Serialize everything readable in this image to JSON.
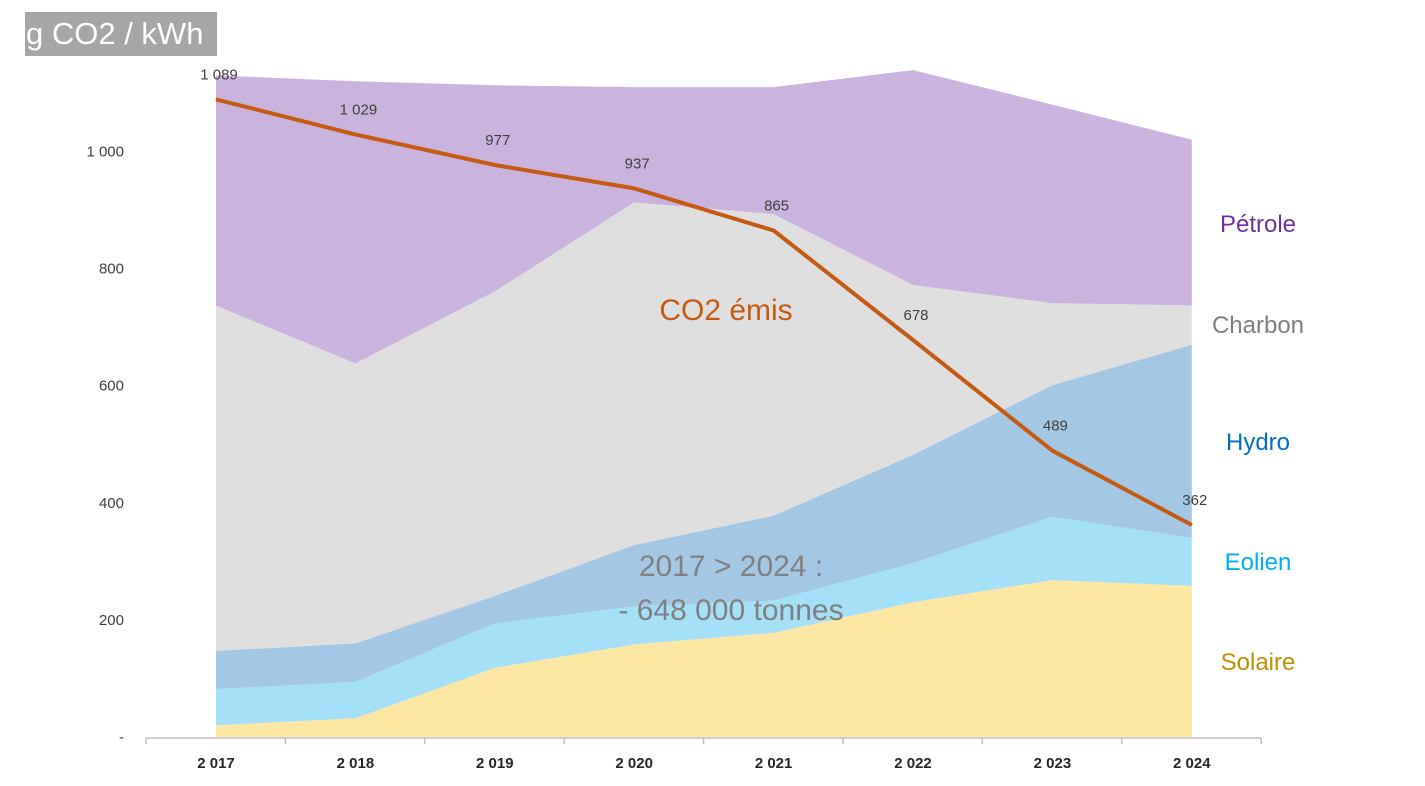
{
  "chart_data": {
    "type": "area",
    "ylabel": "g CO2 / kWh",
    "x": [
      "2 017",
      "2 018",
      "2 019",
      "2 020",
      "2 021",
      "2 022",
      "2 023",
      "2 024"
    ],
    "ylim": [
      0,
      1100
    ],
    "y_ticks": [
      {
        "value": 0,
        "label": "-"
      },
      {
        "value": 200,
        "label": "200"
      },
      {
        "value": 400,
        "label": "400"
      },
      {
        "value": 600,
        "label": "600"
      },
      {
        "value": 800,
        "label": "800"
      },
      {
        "value": 1000,
        "label": "1 000"
      }
    ],
    "stacked_series": [
      {
        "name": "Solaire",
        "color": "#fee7a2",
        "label_color": "#bf9000",
        "values": [
          20,
          32,
          118,
          158,
          178,
          230,
          268,
          258
        ]
      },
      {
        "name": "Eolien",
        "color": "#a4e0f8",
        "label_color": "#00b0f0",
        "values": [
          62,
          62,
          76,
          65,
          55,
          67,
          108,
          82
        ]
      },
      {
        "name": "Hydro",
        "color": "#a3c8e6",
        "label_color": "#0070c0",
        "values": [
          65,
          66,
          47,
          105,
          145,
          185,
          225,
          330
        ]
      },
      {
        "name": "Charbon",
        "color": "#dfdfdf",
        "label_color": "#7f7f7f",
        "values": [
          590,
          478,
          520,
          585,
          515,
          290,
          140,
          67
        ]
      },
      {
        "name": "Pétrole",
        "color": "#cab3de",
        "label_color": "#7030a0",
        "values": [
          393,
          482,
          352,
          197,
          217,
          367,
          339,
          283
        ]
      }
    ],
    "line_series": {
      "name": "CO2 émis",
      "color": "#c55a11",
      "values": [
        1089,
        1029,
        977,
        937,
        865,
        678,
        489,
        362
      ],
      "labels": [
        "1 089",
        "1 029",
        "977",
        "937",
        "865",
        "678",
        "489",
        "362"
      ]
    },
    "annotations": {
      "co2_label": "CO2 émis",
      "summary_line1": "2017 > 2024 :",
      "summary_line2": "- 648 000 tonnes"
    }
  }
}
